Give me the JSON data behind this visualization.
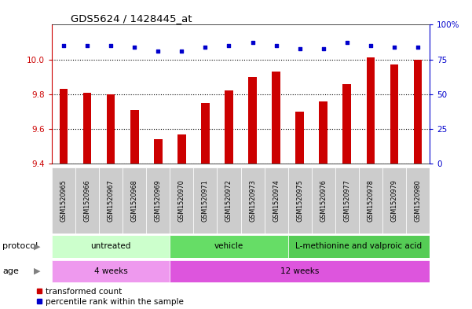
{
  "title": "GDS5624 / 1428445_at",
  "samples": [
    "GSM1520965",
    "GSM1520966",
    "GSM1520967",
    "GSM1520968",
    "GSM1520969",
    "GSM1520970",
    "GSM1520971",
    "GSM1520972",
    "GSM1520973",
    "GSM1520974",
    "GSM1520975",
    "GSM1520976",
    "GSM1520977",
    "GSM1520978",
    "GSM1520979",
    "GSM1520980"
  ],
  "bar_values": [
    9.83,
    9.81,
    9.8,
    9.71,
    9.54,
    9.57,
    9.75,
    9.82,
    9.9,
    9.93,
    9.7,
    9.76,
    9.86,
    10.01,
    9.97,
    10.0
  ],
  "blue_values": [
    10.08,
    10.08,
    10.08,
    10.07,
    10.05,
    10.05,
    10.07,
    10.08,
    10.1,
    10.08,
    10.06,
    10.06,
    10.1,
    10.08,
    10.07,
    10.07
  ],
  "ylim_left": [
    9.4,
    10.2
  ],
  "ylim_right": [
    0,
    100
  ],
  "yticks_left": [
    9.4,
    9.6,
    9.8,
    10.0
  ],
  "yticks_right": [
    0,
    25,
    50,
    75,
    100
  ],
  "bar_color": "#cc0000",
  "blue_color": "#0000cc",
  "bar_bottom": 9.4,
  "protocol_groups": [
    {
      "label": "untreated",
      "start": 0,
      "end": 5,
      "color": "#ccffcc"
    },
    {
      "label": "vehicle",
      "start": 5,
      "end": 10,
      "color": "#66dd66"
    },
    {
      "label": "L-methionine and valproic acid",
      "start": 10,
      "end": 16,
      "color": "#55cc55"
    }
  ],
  "age_groups": [
    {
      "label": "4 weeks",
      "start": 0,
      "end": 5,
      "color": "#ee99ee"
    },
    {
      "label": "12 weeks",
      "start": 5,
      "end": 16,
      "color": "#dd55dd"
    }
  ],
  "protocol_label": "protocol",
  "age_label": "age",
  "legend_bar": "transformed count",
  "legend_blue": "percentile rank within the sample",
  "bg_color": "#ffffff",
  "tick_label_color_left": "#cc0000",
  "tick_label_color_right": "#0000cc",
  "tickbox_color": "#cccccc",
  "bar_width": 0.35
}
